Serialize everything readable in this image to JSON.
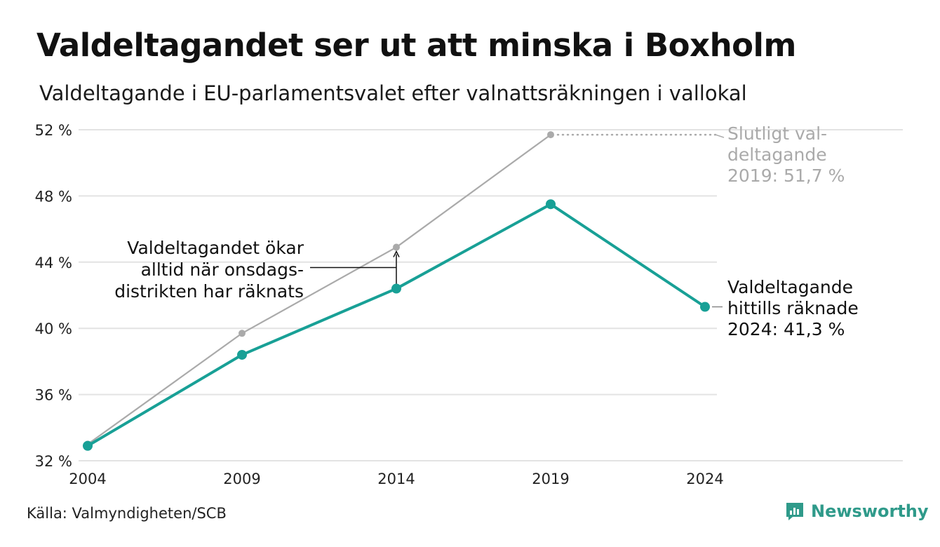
{
  "title": "Valdeltagandet ser ut att minska i Boxholm",
  "subtitle": "Valdeltagande i EU-parlamentsvalet efter valnattsräkningen i vallokal",
  "source": "Källa: Valmyndigheten/SCB",
  "brand": {
    "name": "Newsworthy",
    "color": "#2f9a8a",
    "icon": "newsworthy-logo-icon"
  },
  "chart_data": {
    "type": "line",
    "x": [
      2004,
      2009,
      2014,
      2019,
      2024
    ],
    "xtick_labels": [
      "2004",
      "2009",
      "2014",
      "2019",
      "2024"
    ],
    "ylim": [
      32,
      52
    ],
    "yticks": [
      32,
      36,
      40,
      44,
      48,
      52
    ],
    "ytick_labels": [
      "32 %",
      "36 %",
      "40 %",
      "44 %",
      "48 %",
      "52 %"
    ],
    "grid": true,
    "series": [
      {
        "key": "slutligt",
        "color": "#aaaaaa",
        "values": [
          33.0,
          39.7,
          44.9,
          51.7,
          null
        ]
      },
      {
        "key": "valnatt",
        "color": "#18a096",
        "values": [
          32.9,
          38.4,
          42.4,
          47.5,
          41.3
        ]
      }
    ],
    "annotations": {
      "final": {
        "lines": [
          "Slutligt val-",
          "deltagande",
          "2019: 51,7 %"
        ],
        "color": "#aaaaaa"
      },
      "current": {
        "lines": [
          "Valdeltagande",
          "hittills räknade",
          "2024: 41,3 %"
        ],
        "color": "#111111"
      },
      "note": {
        "lines": [
          "Valdeltagandet ökar",
          "alltid när onsdags-",
          "distrikten har räknats"
        ],
        "color": "#111111"
      }
    }
  }
}
